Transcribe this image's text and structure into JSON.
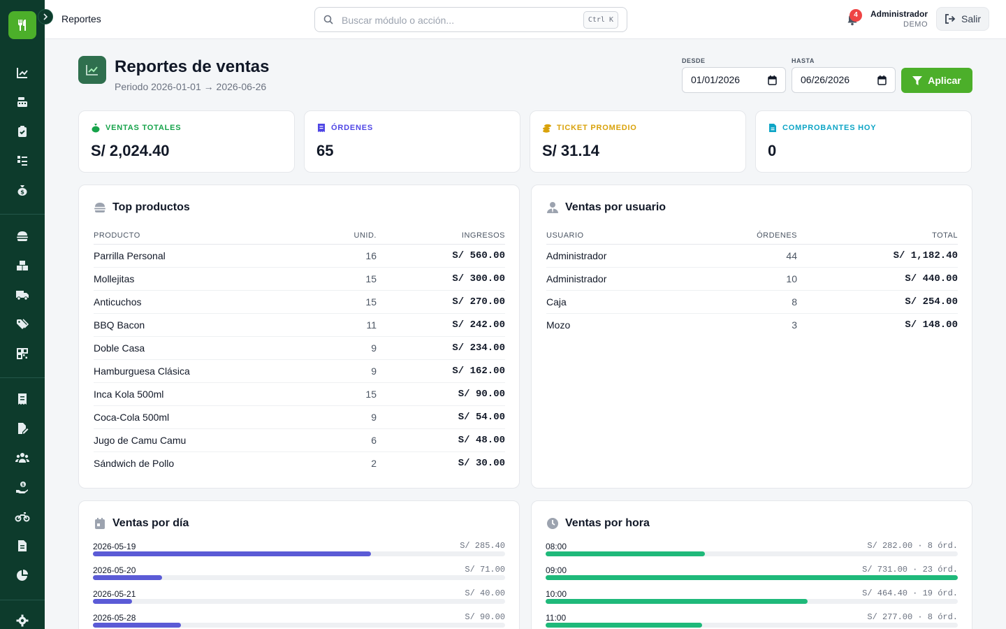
{
  "colors": {
    "sidebar": "#0d3b2c",
    "accent": "#4caf2a",
    "day_bar": "#5b5bd6",
    "hour_bar": "#1fb97a"
  },
  "topbar": {
    "breadcrumb": "Reportes",
    "search_placeholder": "Buscar módulo o acción...",
    "shortcut": "Ctrl K",
    "notifications": "4",
    "user_name": "Administrador",
    "user_role": "DEMO",
    "logout": "Salir"
  },
  "sidebar": {
    "icons": [
      "chart-line-icon",
      "cash-register-icon",
      "clipboard-check-icon",
      "checklist-icon",
      "money-bag-icon",
      "burger-icon",
      "boxes-icon",
      "truck-icon",
      "tags-icon",
      "qr-code-icon",
      "receipt-icon",
      "file-signature-icon",
      "users-icon",
      "hand-holding-money-icon",
      "motorcycle-icon",
      "file-icon",
      "pie-chart-icon",
      "settings-icon"
    ]
  },
  "header": {
    "title": "Reportes de ventas",
    "subtitle": "Periodo 2026-01-01 → 2026-06-26",
    "from_label": "DESDE",
    "from_value": "01/01/2026",
    "to_label": "HASTA",
    "to_value": "06/26/2026",
    "apply": "Aplicar"
  },
  "kpis": [
    {
      "label": "VENTAS TOTALES",
      "value": "S/ 2,024.40",
      "color": "#16a34a"
    },
    {
      "label": "ÓRDENES",
      "value": "65",
      "color": "#4f46e5"
    },
    {
      "label": "TICKET PROMEDIO",
      "value": "S/ 31.14",
      "color": "#d9a20a"
    },
    {
      "label": "COMPROBANTES HOY",
      "value": "0",
      "color": "#0ea5c6"
    }
  ],
  "top_products": {
    "title": "Top productos",
    "headers": [
      "PRODUCTO",
      "UNID.",
      "INGRESOS"
    ],
    "rows": [
      [
        "Parrilla Personal",
        "16",
        "S/ 560.00"
      ],
      [
        "Mollejitas",
        "15",
        "S/ 300.00"
      ],
      [
        "Anticuchos",
        "15",
        "S/ 270.00"
      ],
      [
        "BBQ Bacon",
        "11",
        "S/ 242.00"
      ],
      [
        "Doble Casa",
        "9",
        "S/ 234.00"
      ],
      [
        "Hamburguesa Clásica",
        "9",
        "S/ 162.00"
      ],
      [
        "Inca Kola 500ml",
        "15",
        "S/ 90.00"
      ],
      [
        "Coca-Cola 500ml",
        "9",
        "S/ 54.00"
      ],
      [
        "Jugo de Camu Camu",
        "6",
        "S/ 48.00"
      ],
      [
        "Sándwich de Pollo",
        "2",
        "S/ 30.00"
      ]
    ]
  },
  "sales_by_user": {
    "title": "Ventas por usuario",
    "headers": [
      "USUARIO",
      "ÓRDENES",
      "TOTAL"
    ],
    "rows": [
      [
        "Administrador",
        "44",
        "S/ 1,182.40"
      ],
      [
        "Administrador",
        "10",
        "S/ 440.00"
      ],
      [
        "Caja",
        "8",
        "S/ 254.00"
      ],
      [
        "Mozo",
        "3",
        "S/ 148.00"
      ]
    ]
  },
  "sales_by_day": {
    "title": "Ventas por día",
    "rows": [
      {
        "label": "2026-05-19",
        "value": "S/ 285.40",
        "fraction": 0.675
      },
      {
        "label": "2026-05-20",
        "value": "S/ 71.00",
        "fraction": 0.168
      },
      {
        "label": "2026-05-21",
        "value": "S/ 40.00",
        "fraction": 0.095
      },
      {
        "label": "2026-05-28",
        "value": "S/ 90.00",
        "fraction": 0.213
      }
    ]
  },
  "sales_by_hour": {
    "title": "Ventas por hora",
    "rows": [
      {
        "label": "08:00",
        "value": "S/ 282.00 · 8 órd.",
        "fraction": 0.386
      },
      {
        "label": "09:00",
        "value": "S/ 731.00 · 23 órd.",
        "fraction": 1.0
      },
      {
        "label": "10:00",
        "value": "S/ 464.40 · 19 órd.",
        "fraction": 0.635
      },
      {
        "label": "11:00",
        "value": "S/ 277.00 · 8 órd.",
        "fraction": 0.379
      }
    ]
  }
}
